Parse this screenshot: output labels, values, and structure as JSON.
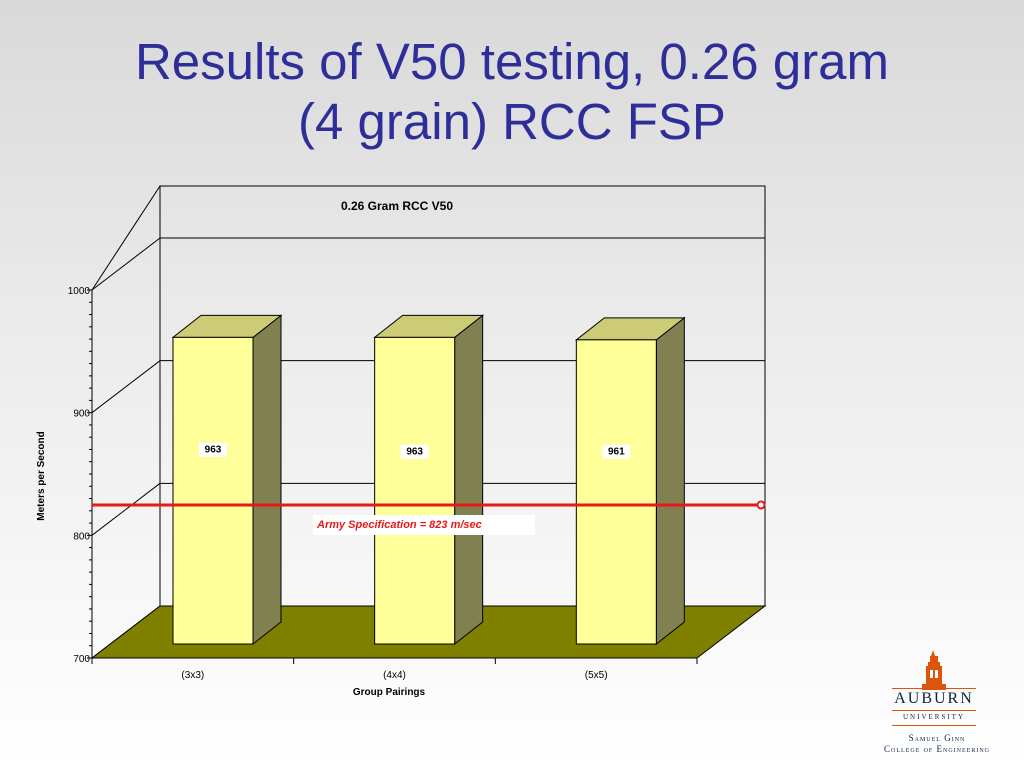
{
  "slide": {
    "title_line1": "Results of V50 testing, 0.26 gram",
    "title_line2": "(4 grain) RCC FSP"
  },
  "chart_data": {
    "type": "bar",
    "title": "0.26 Gram RCC V50",
    "xlabel": "Group Pairings",
    "ylabel": "Meters per Second",
    "ylim": [
      700,
      1000
    ],
    "yticks": [
      700,
      800,
      900,
      1000
    ],
    "categories": [
      "(3x3)",
      "(4x4)",
      "(5x5)"
    ],
    "values": [
      963,
      963,
      961
    ],
    "data_labels": [
      "963",
      "963",
      "961"
    ],
    "reference_line": {
      "value": 823,
      "label": "Army Specification = 823 m/sec",
      "color": "#e81818"
    },
    "three_d": true,
    "grid": true,
    "colors": {
      "bar_front": "#ffff99",
      "bar_side": "#808050",
      "bar_top": "#cccc77",
      "floor": "#808000"
    }
  },
  "logo": {
    "name": "AUBURN",
    "sub": "UNIVERSITY",
    "line1": "Samuel Ginn",
    "line2": "College of Engineering",
    "colors": {
      "navy": "#0c2340",
      "orange": "#dd550c"
    }
  }
}
